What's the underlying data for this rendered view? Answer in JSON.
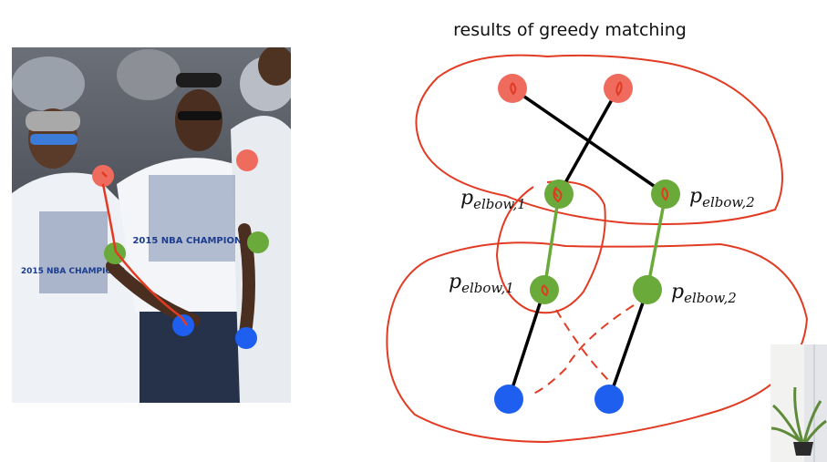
{
  "title": "results of greedy matching",
  "photo": {
    "shirt_text_left": "2015 NBA CHAMPIONS",
    "shirt_text_right": "2015 NBA CHAMPIONS"
  },
  "labels": {
    "p_symbol": "p",
    "upper_left_sub": "elbow,1",
    "upper_right_sub": "elbow,2",
    "lower_left_sub": "elbow,1",
    "lower_right_sub": "elbow,2"
  },
  "colors": {
    "shoulder": "#ef6b5e",
    "elbow": "#6aaa3a",
    "wrist": "#1f5ff0",
    "annotation": "#e23b23"
  }
}
